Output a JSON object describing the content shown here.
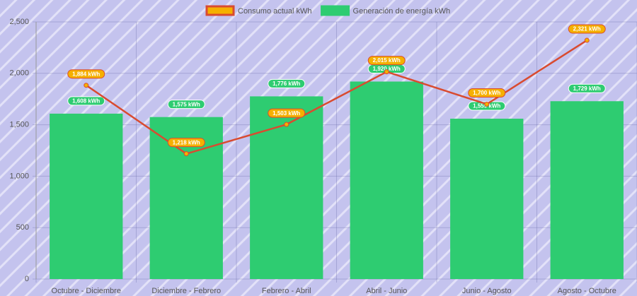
{
  "chart_data": {
    "type": "bar",
    "categories": [
      "Octubre - Diciembre",
      "Diciembre - Febrero",
      "Febrero - Abril",
      "Abril - Junio",
      "Junio - Agosto",
      "Agosto - Octubre"
    ],
    "series": [
      {
        "name": "Consumo actual kWh",
        "type": "line",
        "color": "#f5b000",
        "line_color": "#d94b30",
        "values": [
          1884,
          1218,
          1503,
          2015,
          1700,
          2321
        ],
        "value_labels": [
          "1,884 kWh",
          "1,218 kWh",
          "1,503 kWh",
          "2,015 kWh",
          "1,700 kWh",
          "2,321 kWh"
        ]
      },
      {
        "name": "Generación de energía kWh",
        "type": "bar",
        "color": "#2ecc71",
        "values": [
          1608,
          1575,
          1776,
          1920,
          1559,
          1729
        ],
        "value_labels": [
          "1,608 kWh",
          "1,575 kWh",
          "1,776 kWh",
          "1,920 kWh",
          "1,559 kWh",
          "1,729 kWh"
        ]
      }
    ],
    "ylim": [
      0,
      2500
    ],
    "yticks": [
      0,
      500,
      {
        "value": 1000,
        "label": "1,000"
      },
      {
        "value": 1500,
        "label": "1,500"
      },
      {
        "value": 2000,
        "label": "2,000"
      },
      {
        "value": 2500,
        "label": "2,500"
      }
    ],
    "grid": true
  }
}
